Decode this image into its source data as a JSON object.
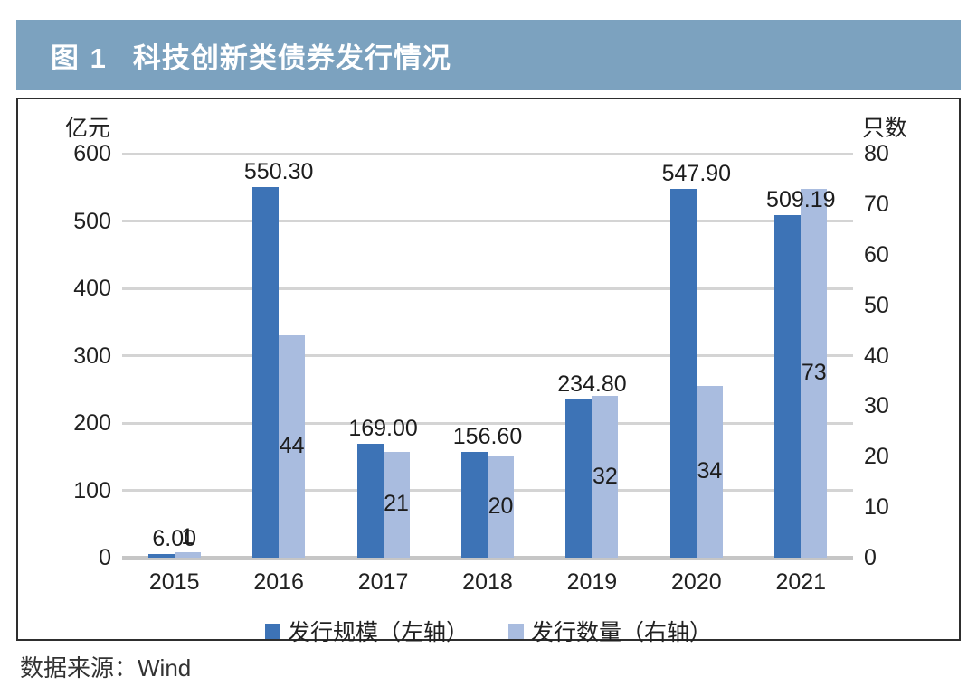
{
  "header": {
    "figure_label": "图 1",
    "title": "科技创新类债券发行情况",
    "bg_color": "#7ca2bf"
  },
  "chart_data": {
    "type": "bar",
    "categories": [
      "2015",
      "2016",
      "2017",
      "2018",
      "2019",
      "2020",
      "2021"
    ],
    "series": [
      {
        "name": "发行规模（左轴）",
        "axis": "left",
        "color": "#3d73b6",
        "values": [
          6.0,
          550.3,
          169.0,
          156.6,
          234.8,
          547.9,
          509.19
        ],
        "labels": [
          "6.00",
          "550.30",
          "169.00",
          "156.60",
          "234.80",
          "547.90",
          "509.19"
        ]
      },
      {
        "name": "发行数量（右轴）",
        "axis": "right",
        "color": "#a9bcdf",
        "values": [
          1,
          44,
          21,
          20,
          32,
          34,
          73
        ],
        "labels": [
          "1",
          "44",
          "21",
          "20",
          "32",
          "34",
          "73"
        ]
      }
    ],
    "left_axis": {
      "title": "亿元",
      "min": 0,
      "max": 600,
      "step": 100,
      "ticks": [
        "600",
        "500",
        "400",
        "300",
        "200",
        "100",
        "0"
      ]
    },
    "right_axis": {
      "title": "只数",
      "min": 0,
      "max": 80,
      "step": 10,
      "ticks": [
        "80",
        "70",
        "60",
        "50",
        "40",
        "30",
        "20",
        "10",
        "0"
      ]
    },
    "grid": true,
    "legend_position": "bottom",
    "colors": {
      "gridline": "#d4d4d4",
      "axis_line": "#c6c6c6",
      "frame_border": "#2e2e2e"
    }
  },
  "source": {
    "text": "数据来源：Wind"
  }
}
